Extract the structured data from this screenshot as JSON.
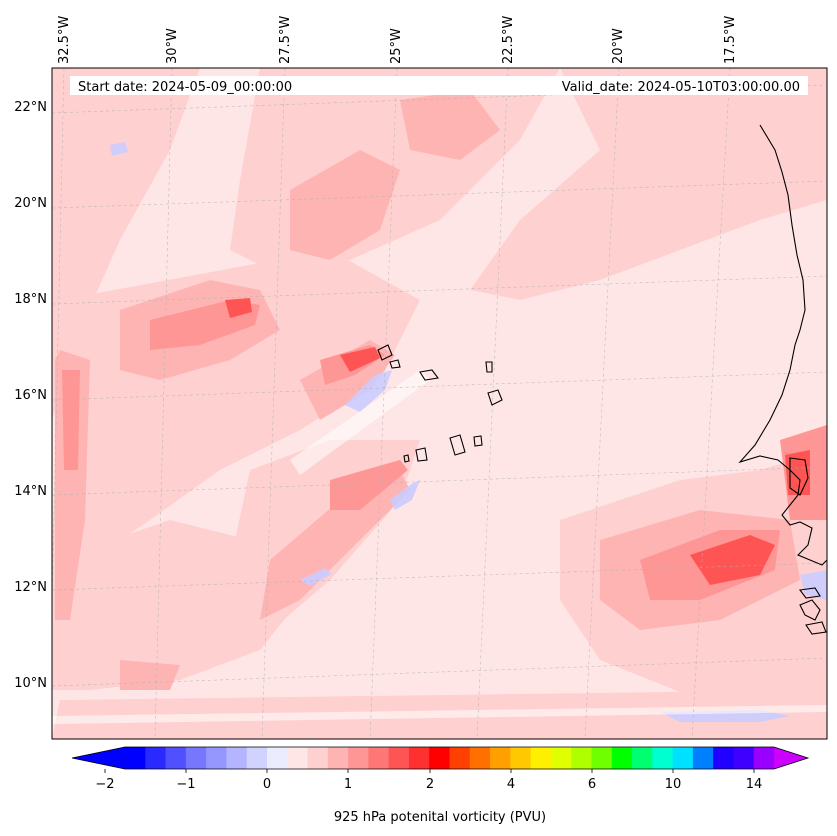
{
  "map": {
    "start_date": "Start date: 2024-05-09_00:00:00",
    "valid_date": "Valid_date: 2024-05-10T03:00:00.00",
    "lon_labels": [
      "32.5°W",
      "30°W",
      "27.5°W",
      "25°W",
      "22.5°W",
      "20°W",
      "17.5°W"
    ],
    "lat_labels": [
      "22°N",
      "20°N",
      "18°N",
      "16°N",
      "14°N",
      "12°N",
      "10°N"
    ],
    "variable": "925 hPa potential vorticity"
  },
  "colorbar": {
    "label": "925 hPa potenital vorticity (PVU)",
    "ticks": [
      "−2",
      "−1",
      "0",
      "1",
      "2",
      "4",
      "6",
      "10",
      "14"
    ],
    "colors": [
      "#0000ff",
      "#2a2aff",
      "#5050ff",
      "#7676ff",
      "#9696ff",
      "#b4b4ff",
      "#d2d2ff",
      "#ececff",
      "#ffe6e6",
      "#ffd0d0",
      "#ffb4b4",
      "#ff9696",
      "#ff7676",
      "#ff5454",
      "#ff3030",
      "#ff0000",
      "#ff4000",
      "#ff7000",
      "#ffa000",
      "#ffc800",
      "#fff000",
      "#e0ff00",
      "#b0ff00",
      "#70ff00",
      "#00ff00",
      "#00ff70",
      "#00ffd0",
      "#00e0ff",
      "#0080ff",
      "#2000ff",
      "#4000ff",
      "#9900ff"
    ],
    "under_color": "#0000ff",
    "over_color": "#cc00ff"
  }
}
